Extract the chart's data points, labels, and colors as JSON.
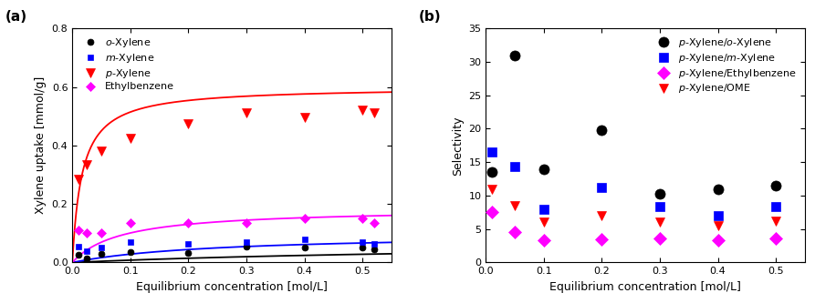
{
  "panel_a": {
    "xlabel": "Equilibrium concentration [mol/L]",
    "ylabel": "Xylene uptake [mmol/g]",
    "ylim": [
      0,
      0.8
    ],
    "xlim": [
      0,
      0.55
    ],
    "yticks": [
      0.0,
      0.2,
      0.4,
      0.6,
      0.8
    ],
    "xticks": [
      0.0,
      0.1,
      0.2,
      0.3,
      0.4,
      0.5
    ],
    "series": {
      "o_Xylene": {
        "color": "black",
        "marker": "o",
        "markersize": 5,
        "x": [
          0.01,
          0.025,
          0.05,
          0.1,
          0.2,
          0.3,
          0.4,
          0.5,
          0.52
        ],
        "y": [
          0.025,
          0.015,
          0.028,
          0.035,
          0.033,
          0.055,
          0.05,
          0.05,
          0.045
        ],
        "fit_params": {
          "qm": 0.075,
          "b": 1.2
        }
      },
      "m_Xylene": {
        "color": "blue",
        "marker": "s",
        "markersize": 5,
        "x": [
          0.01,
          0.025,
          0.05,
          0.1,
          0.2,
          0.3,
          0.4,
          0.5,
          0.52
        ],
        "y": [
          0.055,
          0.04,
          0.05,
          0.07,
          0.065,
          0.07,
          0.08,
          0.07,
          0.065
        ],
        "fit_params": {
          "qm": 0.1,
          "b": 4.0
        }
      },
      "p_Xylene": {
        "color": "red",
        "marker": "v",
        "markersize": 7,
        "x": [
          0.01,
          0.025,
          0.05,
          0.1,
          0.2,
          0.3,
          0.4,
          0.5,
          0.52
        ],
        "y": [
          0.285,
          0.335,
          0.38,
          0.425,
          0.475,
          0.51,
          0.495,
          0.52,
          0.51
        ],
        "fit_params": {
          "qm": 0.6,
          "b": 60.0
        }
      },
      "Ethylbenzene": {
        "color": "magenta",
        "marker": "D",
        "markersize": 5,
        "x": [
          0.01,
          0.025,
          0.05,
          0.1,
          0.2,
          0.3,
          0.4,
          0.5,
          0.52
        ],
        "y": [
          0.11,
          0.1,
          0.1,
          0.135,
          0.135,
          0.135,
          0.15,
          0.15,
          0.135
        ],
        "fit_params": {
          "qm": 0.185,
          "b": 12.0
        }
      }
    },
    "legend_order": [
      "o_Xylene",
      "m_Xylene",
      "p_Xylene",
      "Ethylbenzene"
    ],
    "legend_labels": [
      "$\\it{o}$-Xylene",
      "$\\it{m}$-Xylene",
      "$\\it{p}$-Xylene",
      "Ethylbenzene"
    ]
  },
  "panel_b": {
    "xlabel": "Equilibrium concentration [mol/L]",
    "ylabel": "Selectivity",
    "ylim": [
      0,
      35
    ],
    "xlim": [
      0,
      0.55
    ],
    "yticks": [
      0,
      5,
      10,
      15,
      20,
      25,
      30,
      35
    ],
    "xticks": [
      0.0,
      0.1,
      0.2,
      0.3,
      0.4,
      0.5
    ],
    "series": {
      "p_o": {
        "color": "black",
        "marker": "o",
        "markersize": 8,
        "x": [
          0.01,
          0.05,
          0.1,
          0.2,
          0.3,
          0.4,
          0.5
        ],
        "y": [
          13.5,
          31.0,
          14.0,
          19.8,
          10.3,
          11.0,
          11.5
        ]
      },
      "p_m": {
        "color": "blue",
        "marker": "s",
        "markersize": 7,
        "x": [
          0.01,
          0.05,
          0.1,
          0.2,
          0.3,
          0.4,
          0.5
        ],
        "y": [
          16.5,
          14.3,
          8.0,
          11.2,
          8.4,
          7.0,
          8.3
        ]
      },
      "p_eb": {
        "color": "magenta",
        "marker": "D",
        "markersize": 7,
        "x": [
          0.01,
          0.05,
          0.1,
          0.2,
          0.3,
          0.4,
          0.5
        ],
        "y": [
          7.5,
          4.5,
          3.3,
          3.5,
          3.6,
          3.3,
          3.6
        ]
      },
      "p_ome": {
        "color": "red",
        "marker": "v",
        "markersize": 7,
        "x": [
          0.01,
          0.05,
          0.1,
          0.2,
          0.3,
          0.4,
          0.5
        ],
        "y": [
          11.0,
          8.5,
          6.0,
          7.0,
          6.0,
          5.5,
          6.2
        ]
      }
    },
    "legend_order": [
      "p_o",
      "p_m",
      "p_eb",
      "p_ome"
    ],
    "legend_labels": [
      "$\\it{p}$-Xylene/$\\it{o}$-Xylene",
      "$\\it{p}$-Xylene/$\\it{m}$-Xylene",
      "$\\it{p}$-Xylene/Ethylbenzene",
      "$\\it{p}$-Xylene/OME"
    ]
  }
}
